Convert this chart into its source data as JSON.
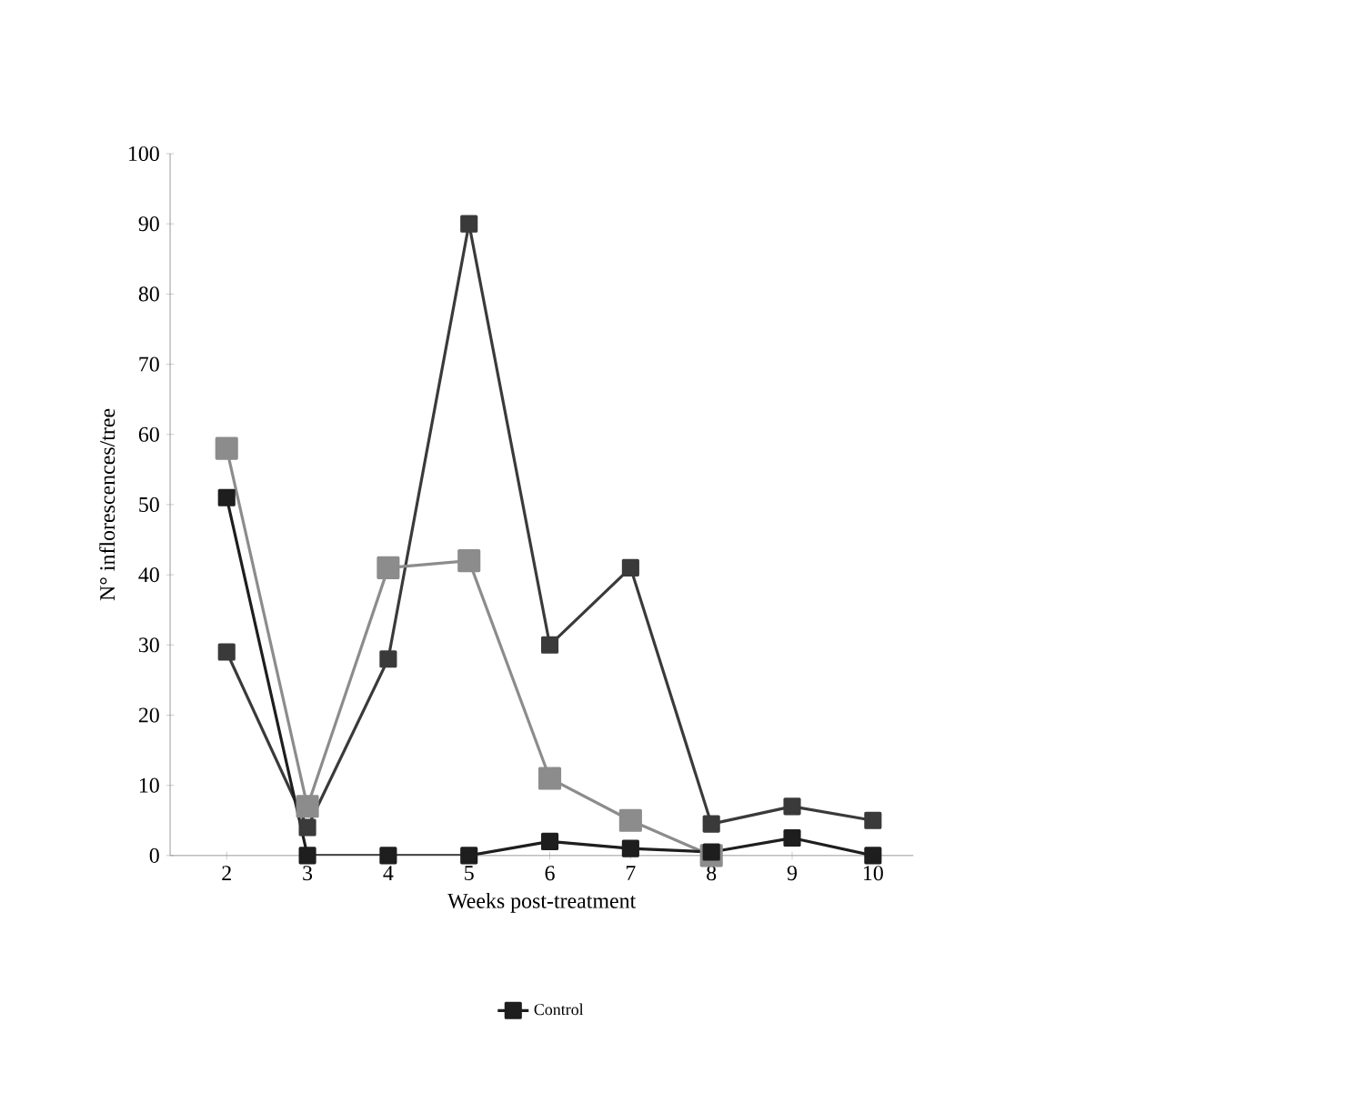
{
  "chart_data": {
    "type": "line",
    "xlabel": "Weeks post-treatment",
    "ylabel": "N° inflorescences/tree",
    "x": [
      2,
      3,
      4,
      5,
      6,
      7,
      8,
      9,
      10
    ],
    "series": [
      {
        "name": "Control",
        "color": "#1e1e1e",
        "values": [
          51,
          0,
          0,
          0,
          2,
          1,
          0.5,
          2.5,
          0
        ]
      },
      {
        "color": "#8c8c8c",
        "values": [
          58,
          7,
          41,
          42,
          11,
          5,
          0,
          null,
          null
        ]
      },
      {
        "color": "#3a3a3a",
        "values": [
          29,
          4,
          28,
          90,
          30,
          41,
          4.5,
          7,
          5
        ]
      }
    ],
    "xlim": [
      1.3,
      10.5
    ],
    "ylim": [
      0,
      100
    ],
    "xticks": [
      2,
      3,
      4,
      5,
      6,
      7,
      8,
      9,
      10
    ],
    "yticks": [
      0,
      10,
      20,
      30,
      40,
      50,
      60,
      70,
      80,
      90,
      100
    ],
    "marker": "square",
    "line_style": "solid",
    "grid": false,
    "legend": "bottom"
  }
}
